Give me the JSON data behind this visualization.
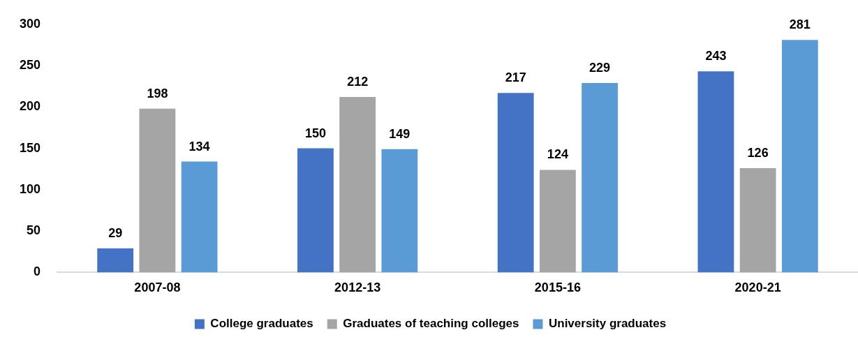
{
  "chart_data": {
    "type": "bar",
    "categories": [
      "2007-08",
      "2012-13",
      "2015-16",
      "2020-21"
    ],
    "series": [
      {
        "name": "College graduates",
        "color": "#4472c4",
        "values": [
          29,
          150,
          217,
          243
        ]
      },
      {
        "name": "Graduates of teaching colleges",
        "color": "#a5a5a5",
        "values": [
          198,
          212,
          124,
          126
        ]
      },
      {
        "name": "University graduates",
        "color": "#5b9bd5",
        "values": [
          134,
          149,
          229,
          281
        ]
      }
    ],
    "ylim": [
      0,
      300
    ],
    "yticks": [
      0,
      50,
      100,
      150,
      200,
      250,
      300
    ],
    "data_labels": true,
    "legend": "bottom"
  }
}
